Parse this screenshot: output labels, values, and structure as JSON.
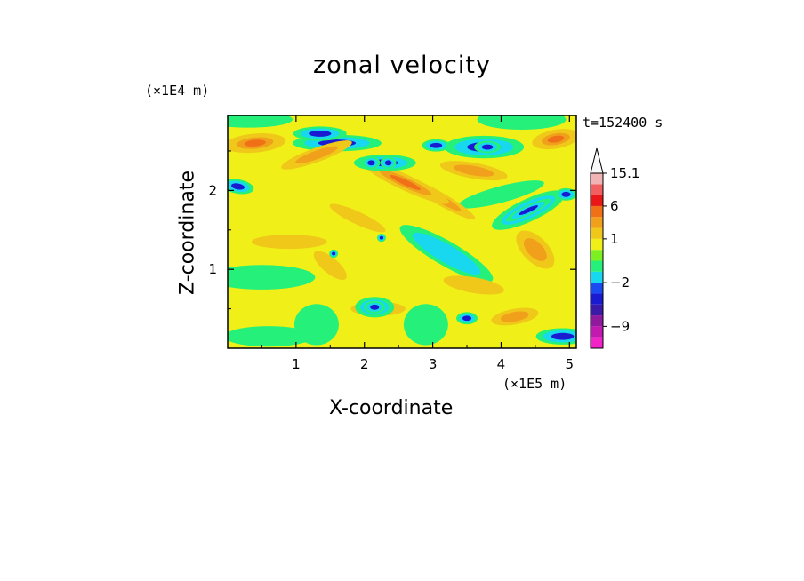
{
  "chart_data": {
    "type": "heatmap",
    "title": "zonal velocity",
    "xlabel": "X-coordinate",
    "ylabel": "Z-coordinate",
    "x_unit_label": "(×1E5 m)",
    "z_unit_label": "(×1E4 m)",
    "time_label": "t=152400 s",
    "xlim": [
      0,
      5.1
    ],
    "ylim": [
      0,
      2.95
    ],
    "x_ticks": [
      1,
      2,
      3,
      4,
      5
    ],
    "y_ticks": [
      1,
      2
    ],
    "colorbar": {
      "labels": [
        "15.1",
        "6",
        "1",
        "−2",
        "−9"
      ],
      "label_values": [
        15.1,
        6,
        1,
        -2,
        -9
      ],
      "bands": [
        {
          "color": "#f224c8",
          "low": -14,
          "high": -11
        },
        {
          "color": "#c21ab0",
          "low": -11,
          "high": -9
        },
        {
          "color": "#901a9e",
          "low": -9,
          "high": -6
        },
        {
          "color": "#3b1aa8",
          "low": -6,
          "high": -4
        },
        {
          "color": "#1a1ad0",
          "low": -4,
          "high": -3
        },
        {
          "color": "#1a4cf2",
          "low": -3,
          "high": -2
        },
        {
          "color": "#18d8f0",
          "low": -2,
          "high": -1
        },
        {
          "color": "#24f07a",
          "low": -1,
          "high": 0
        },
        {
          "color": "#7cf020",
          "low": 0,
          "high": 0.5
        },
        {
          "color": "#f0f018",
          "low": 0.5,
          "high": 1
        },
        {
          "color": "#f0c81a",
          "low": 1,
          "high": 2
        },
        {
          "color": "#f0a01a",
          "low": 2,
          "high": 3
        },
        {
          "color": "#f07018",
          "low": 3,
          "high": 6
        },
        {
          "color": "#e81818",
          "low": 6,
          "high": 9
        },
        {
          "color": "#f06060",
          "low": 9,
          "high": 12
        },
        {
          "color": "#f0b4b4",
          "low": 12,
          "high": 15.1
        }
      ],
      "overflow_color": "#f8f8f8"
    },
    "field_colors": {
      "strong_negative": "#1a1ad0",
      "negative": "#18d8f0",
      "weak_negative": "#24f07a",
      "near_zero": "#f0f018",
      "positive": "#f0c81a",
      "strong_positive": "#f0a01a"
    },
    "features": [
      {
        "x": 0.4,
        "z": 2.6,
        "v": 4.0,
        "sx": 0.45,
        "sz": 0.12,
        "rot": -5
      },
      {
        "x": 1.3,
        "z": 2.45,
        "v": 3.2,
        "sx": 0.55,
        "sz": 0.09,
        "rot": -20
      },
      {
        "x": 2.6,
        "z": 2.1,
        "v": 3.4,
        "sx": 0.7,
        "sz": 0.1,
        "rot": 25
      },
      {
        "x": 3.6,
        "z": 2.25,
        "v": 3.0,
        "sx": 0.5,
        "sz": 0.1,
        "rot": 10
      },
      {
        "x": 4.8,
        "z": 2.65,
        "v": 3.5,
        "sx": 0.35,
        "sz": 0.12,
        "rot": -10
      },
      {
        "x": 3.1,
        "z": 1.9,
        "v": 2.6,
        "sx": 0.6,
        "sz": 0.08,
        "rot": 30
      },
      {
        "x": 0.9,
        "z": 1.35,
        "v": 2.4,
        "sx": 0.55,
        "sz": 0.09,
        "rot": 0
      },
      {
        "x": 1.9,
        "z": 1.65,
        "v": 2.2,
        "sx": 0.45,
        "sz": 0.08,
        "rot": 25
      },
      {
        "x": 4.5,
        "z": 1.25,
        "v": 2.8,
        "sx": 0.35,
        "sz": 0.16,
        "rot": 45
      },
      {
        "x": 3.6,
        "z": 0.8,
        "v": 2.4,
        "sx": 0.45,
        "sz": 0.1,
        "rot": 10
      },
      {
        "x": 2.2,
        "z": 0.5,
        "v": 2.0,
        "sx": 0.4,
        "sz": 0.09,
        "rot": 0
      },
      {
        "x": 4.2,
        "z": 0.4,
        "v": 2.6,
        "sx": 0.35,
        "sz": 0.1,
        "rot": -10
      },
      {
        "x": 1.5,
        "z": 1.05,
        "v": 1.8,
        "sx": 0.3,
        "sz": 0.1,
        "rot": 40
      },
      {
        "x": 0.15,
        "z": 2.05,
        "v": -6.0,
        "sx": 0.18,
        "sz": 0.07,
        "rot": 10
      },
      {
        "x": 1.35,
        "z": 2.72,
        "v": -3.5,
        "sx": 0.3,
        "sz": 0.07,
        "rot": 0
      },
      {
        "x": 2.3,
        "z": 2.35,
        "v": -4.0,
        "sx": 0.35,
        "sz": 0.08,
        "rot": 0
      },
      {
        "x": 2.1,
        "z": 2.35,
        "v": -6.0,
        "sx": 0.1,
        "sz": 0.06,
        "rot": 0
      },
      {
        "x": 2.35,
        "z": 2.35,
        "v": -6.0,
        "sx": 0.09,
        "sz": 0.06,
        "rot": 0
      },
      {
        "x": 3.05,
        "z": 2.57,
        "v": -6.0,
        "sx": 0.16,
        "sz": 0.06,
        "rot": 0
      },
      {
        "x": 3.8,
        "z": 2.55,
        "v": -5.0,
        "sx": 0.15,
        "sz": 0.06,
        "rot": 0
      },
      {
        "x": 3.75,
        "z": 2.55,
        "v": -3.0,
        "sx": 0.45,
        "sz": 0.11,
        "rot": 0
      },
      {
        "x": 4.4,
        "z": 1.75,
        "v": -6.0,
        "sx": 0.28,
        "sz": 0.05,
        "rot": -25
      },
      {
        "x": 4.4,
        "z": 1.75,
        "v": -3.0,
        "sx": 0.45,
        "sz": 0.11,
        "rot": -25
      },
      {
        "x": 4.95,
        "z": 1.95,
        "v": -6.0,
        "sx": 0.12,
        "sz": 0.06,
        "rot": 0
      },
      {
        "x": 2.15,
        "z": 0.52,
        "v": -6.0,
        "sx": 0.12,
        "sz": 0.06,
        "rot": 0
      },
      {
        "x": 2.15,
        "z": 0.52,
        "v": -3.0,
        "sx": 0.22,
        "sz": 0.1,
        "rot": 0
      },
      {
        "x": 3.5,
        "z": 0.38,
        "v": -5.0,
        "sx": 0.12,
        "sz": 0.06,
        "rot": 0
      },
      {
        "x": 4.9,
        "z": 0.15,
        "v": -3.0,
        "sx": 0.3,
        "sz": 0.08,
        "rot": 0
      },
      {
        "x": 1.55,
        "z": 1.2,
        "v": -4.0,
        "sx": 0.05,
        "sz": 0.04,
        "rot": 0
      },
      {
        "x": 2.25,
        "z": 1.4,
        "v": -4.0,
        "sx": 0.05,
        "sz": 0.04,
        "rot": 0
      },
      {
        "x": 1.6,
        "z": 2.6,
        "v": -3.0,
        "sx": 0.5,
        "sz": 0.08,
        "rot": 0
      },
      {
        "x": 0.3,
        "z": 2.9,
        "v": -1.2,
        "sx": 0.5,
        "sz": 0.08,
        "rot": 0
      },
      {
        "x": 4.3,
        "z": 2.9,
        "v": -1.2,
        "sx": 0.5,
        "sz": 0.1,
        "rot": 0
      },
      {
        "x": 3.2,
        "z": 1.2,
        "v": -1.5,
        "sx": 0.6,
        "sz": 0.12,
        "rot": 30
      },
      {
        "x": 0.5,
        "z": 0.9,
        "v": -0.8,
        "sx": 0.6,
        "sz": 0.12,
        "rot": 0
      },
      {
        "x": 1.3,
        "z": 0.3,
        "v": -1.0,
        "sx": 0.25,
        "sz": 0.2,
        "rot": 0
      },
      {
        "x": 2.9,
        "z": 0.3,
        "v": -1.0,
        "sx": 0.25,
        "sz": 0.2,
        "rot": 0
      },
      {
        "x": 4.0,
        "z": 1.95,
        "v": -1.2,
        "sx": 0.5,
        "sz": 0.08,
        "rot": -15
      },
      {
        "x": 0.6,
        "z": 0.15,
        "v": -0.8,
        "sx": 0.5,
        "sz": 0.1,
        "rot": 0
      }
    ]
  }
}
